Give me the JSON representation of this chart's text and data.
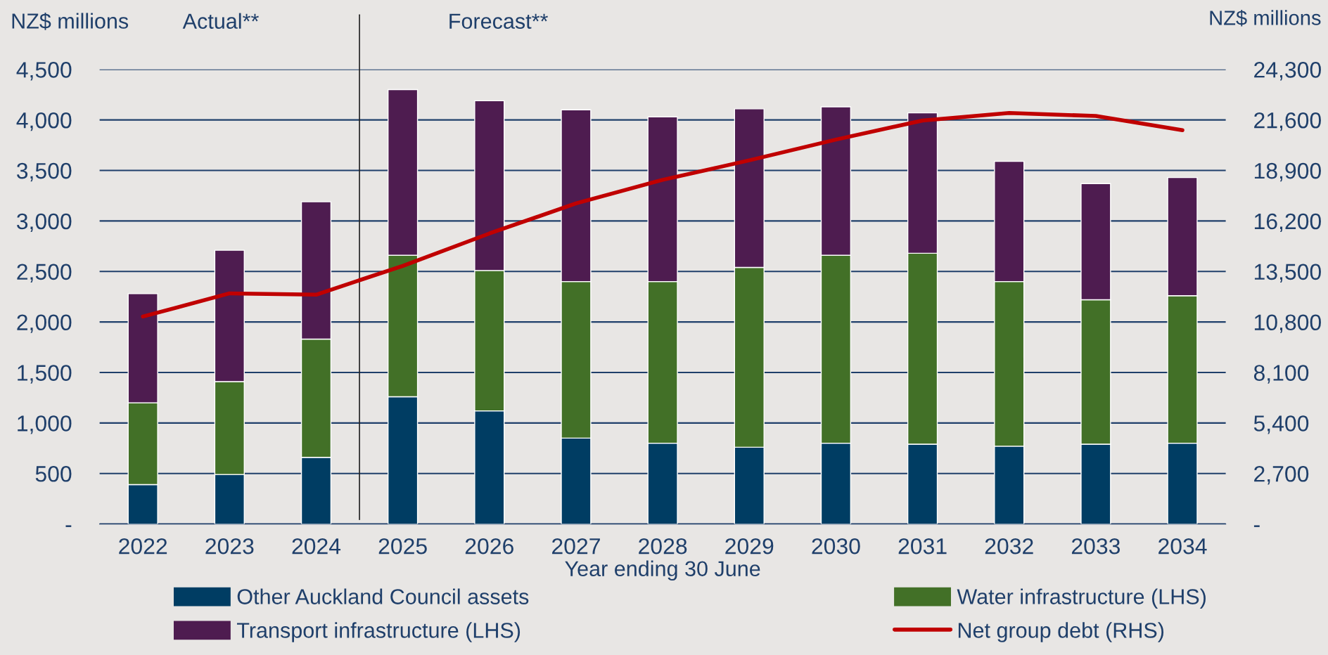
{
  "chart_data": {
    "type": "bar",
    "stacked": true,
    "x": [
      2022,
      2023,
      2024,
      2025,
      2026,
      2027,
      2028,
      2029,
      2030,
      2031,
      2032,
      2033,
      2034
    ],
    "xlim": [
      2021.5,
      2034.5
    ],
    "xticks": [
      2022,
      2023,
      2024,
      2025,
      2026,
      2027,
      2028,
      2029,
      2030,
      2031,
      2032,
      2033,
      2034
    ],
    "xlabel": "Year ending 30 June",
    "ylabel": "NZ$ millions",
    "y2label": "NZ$ millions",
    "ylim": [
      0,
      4500
    ],
    "yticks": [
      {
        "value": 0,
        "label": "-"
      },
      {
        "value": 500,
        "label": "500"
      },
      {
        "value": 1000,
        "label": "1,000"
      },
      {
        "value": 1500,
        "label": "1,500"
      },
      {
        "value": 2000,
        "label": "2,000"
      },
      {
        "value": 2500,
        "label": "2,500"
      },
      {
        "value": 3000,
        "label": "3,000"
      },
      {
        "value": 3500,
        "label": "3,500"
      },
      {
        "value": 4000,
        "label": "4,000"
      },
      {
        "value": 4500,
        "label": "4,500"
      }
    ],
    "y2lim": [
      0,
      24300
    ],
    "y2ticks": [
      {
        "value": 0,
        "label": "-"
      },
      {
        "value": 2700,
        "label": "2,700"
      },
      {
        "value": 5400,
        "label": "5,400"
      },
      {
        "value": 8100,
        "label": "8,100"
      },
      {
        "value": 10800,
        "label": "10,800"
      },
      {
        "value": 13500,
        "label": "13,500"
      },
      {
        "value": 16200,
        "label": "16,200"
      },
      {
        "value": 18900,
        "label": "18,900"
      },
      {
        "value": 21600,
        "label": "21,600"
      },
      {
        "value": 24300,
        "label": "24,300"
      }
    ],
    "series": [
      {
        "name": "Other Auckland Council assets",
        "color": "#003d63",
        "values": [
          390,
          490,
          660,
          1260,
          1120,
          850,
          800,
          760,
          800,
          790,
          770,
          790,
          800
        ]
      },
      {
        "name": "Water infrastructure (LHS)",
        "color": "#427027",
        "values": [
          810,
          920,
          1170,
          1400,
          1390,
          1550,
          1600,
          1780,
          1860,
          1890,
          1630,
          1430,
          1460
        ]
      },
      {
        "name": "Transport infrastructure (LHS)",
        "color": "#4e1c50",
        "values": [
          1080,
          1300,
          1360,
          1640,
          1680,
          1700,
          1630,
          1570,
          1470,
          1390,
          1190,
          1150,
          1170
        ]
      },
      {
        "name": "Net group debt (RHS)",
        "type": "line",
        "axis": "y2",
        "color": "#c00000",
        "line_style": "solid",
        "values": [
          11090,
          12330,
          12260,
          13800,
          15530,
          17140,
          18400,
          19440,
          20550,
          21570,
          21970,
          21810,
          21050
        ]
      }
    ],
    "ref_lines": [
      {
        "axis": "x",
        "value": 2024.5,
        "color": "#222222",
        "line_style": "solid"
      }
    ],
    "annotations": [
      "Actual**",
      "Forecast**"
    ],
    "grid": "y",
    "legend": "bottom"
  }
}
